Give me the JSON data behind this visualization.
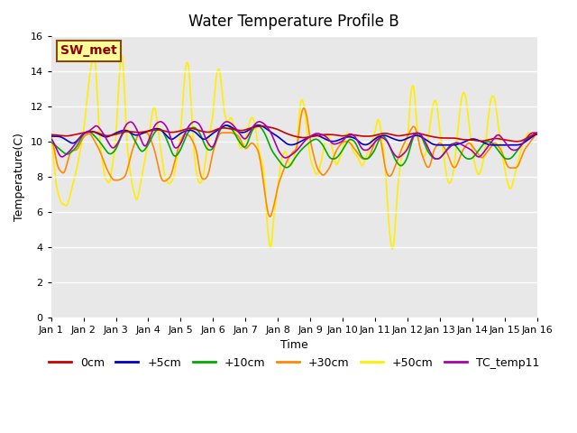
{
  "title": "Water Temperature Profile B",
  "xlabel": "Time",
  "ylabel": "Temperature(C)",
  "ylim": [
    0,
    16
  ],
  "yticks": [
    0,
    2,
    4,
    6,
    8,
    10,
    12,
    14,
    16
  ],
  "xlim": [
    0,
    15
  ],
  "xtick_labels": [
    "Jan 1",
    "Jan 2",
    "Jan 3",
    "Jan 4",
    "Jan 5",
    "Jan 6",
    "Jan 7",
    "Jan 8",
    "Jan 9",
    "Jan 10",
    "Jan 11",
    "Jan 12",
    "Jan 13",
    "Jan 14",
    "Jan 15",
    "Jan 16"
  ],
  "bg_color": "#e8e8e8",
  "annotation_text": "SW_met",
  "annotation_color": "#8b0000",
  "annotation_bg": "#ffff99",
  "annotation_border": "#8b4513",
  "colors": {
    "0cm": "#cc0000",
    "+5cm": "#0000cc",
    "+10cm": "#00aa00",
    "+30cm": "#ff8800",
    "+50cm": "#ffee00",
    "TC_temp11": "#aa00aa"
  },
  "title_fontsize": 12,
  "label_fontsize": 9,
  "tick_fontsize": 8
}
